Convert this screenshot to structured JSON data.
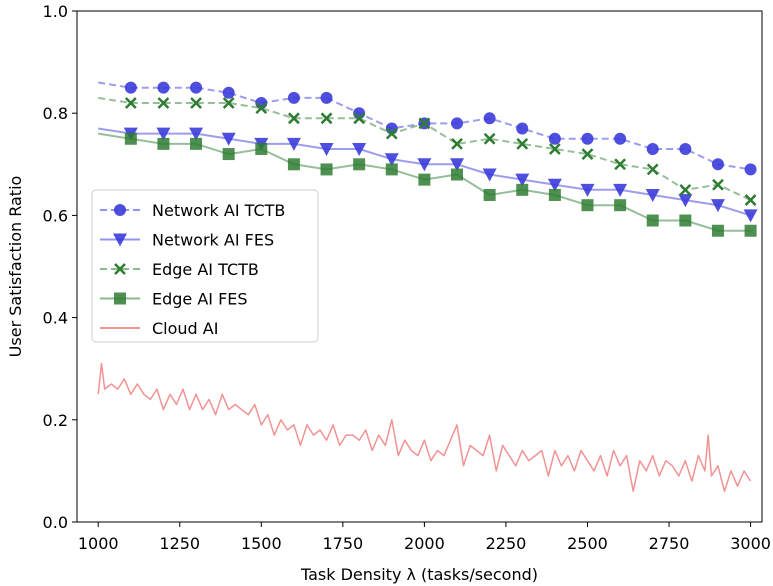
{
  "chart_data": {
    "type": "line",
    "title": "",
    "xlabel": "Task Density λ (tasks/second)",
    "ylabel": "User Satisfaction Ratio",
    "xlim": [
      935,
      3035
    ],
    "ylim": [
      0.0,
      1.0
    ],
    "xticks": [
      "1000",
      "1250",
      "1500",
      "1750",
      "2000",
      "2250",
      "2500",
      "2750",
      "3000"
    ],
    "yticks": [
      "0.0",
      "0.2",
      "0.4",
      "0.6",
      "0.8",
      "1.0"
    ],
    "grid": false,
    "legend_position": "center-left",
    "series": [
      {
        "name": "Network AI TCTB",
        "color": "#3b3bdb",
        "marker": "circle",
        "x": [
          1000,
          1100,
          1200,
          1300,
          1400,
          1500,
          1600,
          1700,
          1800,
          1900,
          2000,
          2100,
          2200,
          2300,
          2400,
          2500,
          2600,
          2700,
          2800,
          2900,
          3000
        ],
        "y": [
          0.86,
          0.85,
          0.85,
          0.85,
          0.84,
          0.82,
          0.83,
          0.83,
          0.8,
          0.77,
          0.78,
          0.78,
          0.79,
          0.77,
          0.75,
          0.75,
          0.75,
          0.73,
          0.73,
          0.7,
          0.69
        ]
      },
      {
        "name": "Network AI FES",
        "color": "#3b3bdb",
        "marker": "triangle-down",
        "x": [
          1000,
          1100,
          1200,
          1300,
          1400,
          1500,
          1600,
          1700,
          1800,
          1900,
          2000,
          2100,
          2200,
          2300,
          2400,
          2500,
          2600,
          2700,
          2800,
          2900,
          3000
        ],
        "y": [
          0.77,
          0.76,
          0.76,
          0.76,
          0.75,
          0.74,
          0.74,
          0.73,
          0.73,
          0.71,
          0.7,
          0.7,
          0.68,
          0.67,
          0.66,
          0.65,
          0.65,
          0.64,
          0.63,
          0.62,
          0.6
        ]
      },
      {
        "name": "Edge AI TCTB",
        "color": "#2e7d32",
        "marker": "x",
        "x": [
          1000,
          1100,
          1200,
          1300,
          1400,
          1500,
          1600,
          1700,
          1800,
          1900,
          2000,
          2100,
          2200,
          2300,
          2400,
          2500,
          2600,
          2700,
          2800,
          2900,
          3000
        ],
        "y": [
          0.83,
          0.82,
          0.82,
          0.82,
          0.82,
          0.81,
          0.79,
          0.79,
          0.79,
          0.76,
          0.78,
          0.74,
          0.75,
          0.74,
          0.73,
          0.72,
          0.7,
          0.69,
          0.65,
          0.66,
          0.63
        ]
      },
      {
        "name": "Edge AI FES",
        "color": "#2e7d32",
        "marker": "square",
        "x": [
          1000,
          1100,
          1200,
          1300,
          1400,
          1500,
          1600,
          1700,
          1800,
          1900,
          2000,
          2100,
          2200,
          2300,
          2400,
          2500,
          2600,
          2700,
          2800,
          2900,
          3000
        ],
        "y": [
          0.76,
          0.75,
          0.74,
          0.74,
          0.72,
          0.73,
          0.7,
          0.69,
          0.7,
          0.69,
          0.67,
          0.68,
          0.64,
          0.65,
          0.64,
          0.62,
          0.62,
          0.59,
          0.59,
          0.57,
          0.57
        ]
      },
      {
        "name": "Cloud AI",
        "color": "#f08080",
        "marker": "none",
        "x": [
          1000,
          1010,
          1020,
          1040,
          1060,
          1080,
          1100,
          1120,
          1140,
          1160,
          1180,
          1200,
          1220,
          1240,
          1260,
          1280,
          1300,
          1320,
          1340,
          1360,
          1380,
          1400,
          1420,
          1440,
          1460,
          1480,
          1500,
          1520,
          1540,
          1560,
          1580,
          1600,
          1620,
          1640,
          1660,
          1680,
          1700,
          1720,
          1740,
          1760,
          1780,
          1800,
          1820,
          1840,
          1860,
          1880,
          1900,
          1920,
          1940,
          1960,
          1980,
          2000,
          2020,
          2040,
          2060,
          2080,
          2100,
          2120,
          2140,
          2160,
          2180,
          2200,
          2220,
          2240,
          2260,
          2280,
          2300,
          2320,
          2340,
          2360,
          2380,
          2400,
          2420,
          2440,
          2460,
          2480,
          2500,
          2520,
          2540,
          2560,
          2580,
          2600,
          2620,
          2640,
          2660,
          2680,
          2700,
          2720,
          2740,
          2760,
          2780,
          2800,
          2820,
          2840,
          2860,
          2870,
          2880,
          2900,
          2920,
          2940,
          2960,
          2980,
          3000
        ],
        "y": [
          0.25,
          0.31,
          0.26,
          0.27,
          0.26,
          0.28,
          0.25,
          0.27,
          0.25,
          0.24,
          0.26,
          0.22,
          0.25,
          0.23,
          0.26,
          0.22,
          0.25,
          0.22,
          0.24,
          0.21,
          0.25,
          0.22,
          0.23,
          0.22,
          0.21,
          0.23,
          0.19,
          0.21,
          0.17,
          0.2,
          0.18,
          0.19,
          0.15,
          0.19,
          0.17,
          0.18,
          0.16,
          0.19,
          0.15,
          0.17,
          0.17,
          0.16,
          0.18,
          0.14,
          0.17,
          0.15,
          0.2,
          0.13,
          0.16,
          0.14,
          0.13,
          0.16,
          0.12,
          0.14,
          0.13,
          0.16,
          0.19,
          0.11,
          0.15,
          0.14,
          0.13,
          0.17,
          0.1,
          0.15,
          0.13,
          0.11,
          0.14,
          0.12,
          0.13,
          0.14,
          0.09,
          0.14,
          0.11,
          0.13,
          0.1,
          0.14,
          0.12,
          0.1,
          0.13,
          0.09,
          0.14,
          0.11,
          0.13,
          0.06,
          0.12,
          0.1,
          0.13,
          0.09,
          0.12,
          0.11,
          0.09,
          0.12,
          0.08,
          0.13,
          0.1,
          0.17,
          0.09,
          0.11,
          0.06,
          0.1,
          0.07,
          0.1,
          0.08
        ]
      }
    ]
  }
}
